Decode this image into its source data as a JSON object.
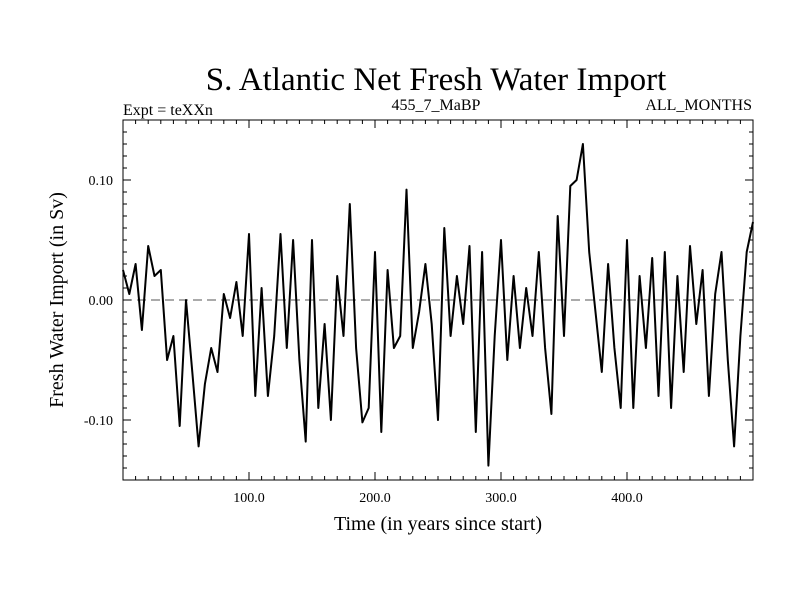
{
  "chart_data": {
    "type": "line",
    "title": "S. Atlantic Net Fresh Water Import",
    "subtitle_left": "Expt = teXXn",
    "subtitle_center": "455_7_MaBP",
    "subtitle_right": "ALL_MONTHS",
    "xlabel": "Time (in years since start)",
    "ylabel": "Fresh Water Import (in Sv)",
    "xlim": [
      0,
      500
    ],
    "ylim": [
      -0.15,
      0.15
    ],
    "x_ticks": [
      100,
      200,
      300,
      400
    ],
    "x_tick_labels": [
      "100.0",
      "200.0",
      "300.0",
      "400.0"
    ],
    "y_ticks": [
      -0.1,
      0.0,
      0.1
    ],
    "y_tick_labels": [
      "-0.10",
      "0.00",
      "0.10"
    ],
    "reference_line": 0.0,
    "series": [
      {
        "name": "Net Fresh Water Import",
        "x": [
          0,
          5,
          10,
          15,
          20,
          25,
          30,
          35,
          40,
          45,
          50,
          55,
          60,
          65,
          70,
          75,
          80,
          85,
          90,
          95,
          100,
          105,
          110,
          115,
          120,
          125,
          130,
          135,
          140,
          145,
          150,
          155,
          160,
          165,
          170,
          175,
          180,
          185,
          190,
          195,
          200,
          205,
          210,
          215,
          220,
          225,
          230,
          235,
          240,
          245,
          250,
          255,
          260,
          265,
          270,
          275,
          280,
          285,
          290,
          295,
          300,
          305,
          310,
          315,
          320,
          325,
          330,
          335,
          340,
          345,
          350,
          355,
          360,
          365,
          370,
          375,
          380,
          385,
          390,
          395,
          400,
          405,
          410,
          415,
          420,
          425,
          430,
          435,
          440,
          445,
          450,
          455,
          460,
          465,
          470,
          475,
          480,
          485,
          490,
          495,
          500
        ],
        "values": [
          0.025,
          0.005,
          0.03,
          -0.025,
          0.045,
          0.02,
          0.025,
          -0.05,
          -0.03,
          -0.105,
          0.0,
          -0.06,
          -0.122,
          -0.07,
          -0.04,
          -0.06,
          0.005,
          -0.015,
          0.015,
          -0.03,
          0.055,
          -0.08,
          0.01,
          -0.08,
          -0.03,
          0.055,
          -0.04,
          0.05,
          -0.05,
          -0.118,
          0.05,
          -0.09,
          -0.02,
          -0.1,
          0.02,
          -0.03,
          0.08,
          -0.04,
          -0.102,
          -0.09,
          0.04,
          -0.11,
          0.025,
          -0.04,
          -0.03,
          0.092,
          -0.04,
          -0.01,
          0.03,
          -0.02,
          -0.1,
          0.06,
          -0.03,
          0.02,
          -0.02,
          0.045,
          -0.11,
          0.04,
          -0.138,
          -0.03,
          0.05,
          -0.05,
          0.02,
          -0.04,
          0.01,
          -0.03,
          0.04,
          -0.04,
          -0.095,
          0.07,
          -0.03,
          0.095,
          0.1,
          0.13,
          0.04,
          -0.01,
          -0.06,
          0.03,
          -0.04,
          -0.09,
          0.05,
          -0.09,
          0.02,
          -0.04,
          0.035,
          -0.08,
          0.04,
          -0.09,
          0.02,
          -0.06,
          0.045,
          -0.02,
          0.025,
          -0.08,
          0.005,
          0.04,
          -0.05,
          -0.122,
          -0.03,
          0.04,
          0.065
        ]
      }
    ]
  }
}
